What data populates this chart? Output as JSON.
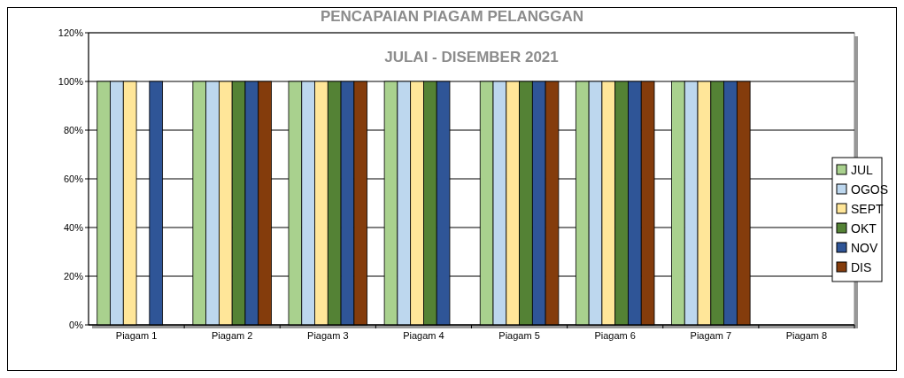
{
  "chart_data": {
    "type": "bar",
    "title": "PENCAPAIAN PIAGAM PELANGGAN",
    "subtitle": "JULAI - DISEMBER 2021",
    "categories": [
      "Piagam 1",
      "Piagam 2",
      "Piagam 3",
      "Piagam 4",
      "Piagam 5",
      "Piagam 6",
      "Piagam 7",
      "Piagam 8"
    ],
    "series": [
      {
        "name": "JUL",
        "color": "#a9d18e",
        "values": [
          100,
          100,
          100,
          100,
          100,
          100,
          100,
          null
        ]
      },
      {
        "name": "OGOS",
        "color": "#bdd7ee",
        "values": [
          100,
          100,
          100,
          100,
          100,
          100,
          100,
          null
        ]
      },
      {
        "name": "SEPT",
        "color": "#ffe699",
        "values": [
          100,
          100,
          100,
          100,
          100,
          100,
          100,
          null
        ]
      },
      {
        "name": "OKT",
        "color": "#548235",
        "values": [
          null,
          100,
          100,
          100,
          100,
          100,
          100,
          null
        ]
      },
      {
        "name": "NOV",
        "color": "#2f5597",
        "values": [
          100,
          100,
          100,
          100,
          100,
          100,
          100,
          null
        ]
      },
      {
        "name": "DIS",
        "color": "#843c0c",
        "values": [
          null,
          100,
          100,
          null,
          100,
          100,
          100,
          null
        ]
      }
    ],
    "ylim": [
      0,
      120
    ],
    "yticks": [
      {
        "value": 0,
        "label": "0%"
      },
      {
        "value": 20,
        "label": "20%"
      },
      {
        "value": 40,
        "label": "40%"
      },
      {
        "value": 60,
        "label": "60%"
      },
      {
        "value": 80,
        "label": "80%"
      },
      {
        "value": 100,
        "label": "100%"
      },
      {
        "value": 120,
        "label": "120%"
      }
    ],
    "grid": "y",
    "legend": "right"
  }
}
